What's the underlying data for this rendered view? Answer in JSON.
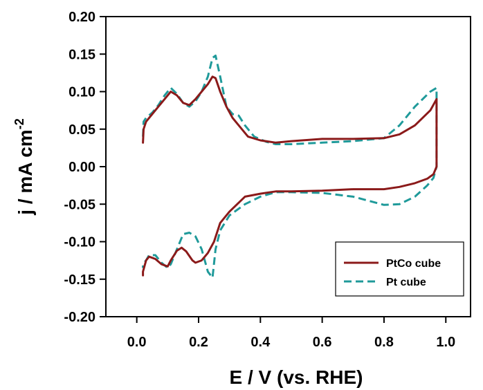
{
  "chart_data": {
    "type": "line",
    "xlabel": "E / V (vs. RHE)",
    "ylabel_main": "j / mA cm",
    "ylabel_sup": "-2",
    "xlim": [
      -0.1,
      1.08
    ],
    "ylim": [
      -0.2,
      0.2
    ],
    "x_ticks": [
      0.0,
      0.2,
      0.4,
      0.6,
      0.8,
      1.0
    ],
    "x_tick_labels": [
      "0.0",
      "0.2",
      "0.4",
      "0.6",
      "0.8",
      "1.0"
    ],
    "y_ticks": [
      0.2,
      0.15,
      0.1,
      0.05,
      0.0,
      -0.05,
      -0.1,
      -0.15,
      -0.2
    ],
    "y_tick_labels": [
      "0.20",
      "0.15",
      "0.10",
      "0.05",
      "0.00",
      "-0.05",
      "-0.10",
      "-0.15",
      "-0.20"
    ],
    "grid": false,
    "legend_position": "bottom-right",
    "colors": {
      "PtCo cube": "#8b1a1a",
      "Pt cube": "#1f9a9a"
    },
    "series": [
      {
        "name": "PtCo cube",
        "style": "solid",
        "color": "#8b1a1a",
        "x": [
          0.02,
          0.022,
          0.03,
          0.05,
          0.07,
          0.09,
          0.11,
          0.13,
          0.15,
          0.17,
          0.19,
          0.21,
          0.23,
          0.245,
          0.255,
          0.27,
          0.29,
          0.31,
          0.33,
          0.36,
          0.4,
          0.45,
          0.5,
          0.6,
          0.7,
          0.8,
          0.85,
          0.9,
          0.95,
          0.97,
          0.97,
          0.96,
          0.94,
          0.9,
          0.85,
          0.8,
          0.7,
          0.6,
          0.5,
          0.45,
          0.4,
          0.35,
          0.3,
          0.27,
          0.25,
          0.23,
          0.21,
          0.19,
          0.18,
          0.16,
          0.145,
          0.13,
          0.11,
          0.1,
          0.08,
          0.06,
          0.04,
          0.03,
          0.02,
          0.02
        ],
        "y": [
          0.032,
          0.05,
          0.06,
          0.07,
          0.08,
          0.09,
          0.1,
          0.095,
          0.085,
          0.082,
          0.09,
          0.1,
          0.11,
          0.12,
          0.118,
          0.1,
          0.08,
          0.065,
          0.055,
          0.04,
          0.035,
          0.032,
          0.034,
          0.037,
          0.037,
          0.038,
          0.043,
          0.055,
          0.075,
          0.09,
          0.0,
          -0.01,
          -0.016,
          -0.022,
          -0.027,
          -0.03,
          -0.03,
          -0.032,
          -0.033,
          -0.033,
          -0.036,
          -0.04,
          -0.06,
          -0.075,
          -0.1,
          -0.115,
          -0.125,
          -0.128,
          -0.125,
          -0.113,
          -0.108,
          -0.112,
          -0.125,
          -0.133,
          -0.13,
          -0.123,
          -0.12,
          -0.125,
          -0.14,
          -0.145
        ]
      },
      {
        "name": "Pt cube",
        "style": "dashed",
        "color": "#1f9a9a",
        "x": [
          0.02,
          0.022,
          0.03,
          0.05,
          0.07,
          0.09,
          0.11,
          0.13,
          0.15,
          0.17,
          0.19,
          0.21,
          0.23,
          0.245,
          0.255,
          0.27,
          0.29,
          0.31,
          0.33,
          0.35,
          0.38,
          0.42,
          0.45,
          0.5,
          0.6,
          0.7,
          0.8,
          0.85,
          0.9,
          0.95,
          0.97,
          0.97,
          0.96,
          0.94,
          0.9,
          0.85,
          0.8,
          0.7,
          0.6,
          0.5,
          0.45,
          0.4,
          0.35,
          0.3,
          0.27,
          0.255,
          0.245,
          0.23,
          0.21,
          0.19,
          0.17,
          0.15,
          0.13,
          0.11,
          0.1,
          0.08,
          0.06,
          0.04,
          0.03,
          0.02,
          0.02
        ],
        "y": [
          0.04,
          0.06,
          0.065,
          0.072,
          0.082,
          0.095,
          0.105,
          0.097,
          0.085,
          0.08,
          0.087,
          0.1,
          0.12,
          0.145,
          0.148,
          0.12,
          0.08,
          0.07,
          0.068,
          0.055,
          0.04,
          0.033,
          0.03,
          0.03,
          0.032,
          0.034,
          0.038,
          0.055,
          0.08,
          0.1,
          0.105,
          0.0,
          -0.015,
          -0.025,
          -0.04,
          -0.05,
          -0.051,
          -0.04,
          -0.035,
          -0.034,
          -0.034,
          -0.04,
          -0.05,
          -0.065,
          -0.085,
          -0.11,
          -0.148,
          -0.14,
          -0.11,
          -0.093,
          -0.088,
          -0.09,
          -0.11,
          -0.13,
          -0.135,
          -0.128,
          -0.118,
          -0.118,
          -0.125,
          -0.13,
          -0.135
        ]
      }
    ]
  }
}
